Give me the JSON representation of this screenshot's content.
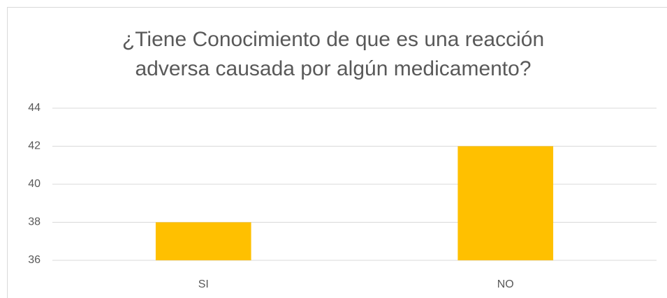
{
  "chart_data": {
    "type": "bar",
    "title": "¿Tiene Conocimiento de que es una reacción adversa causada por algún medicamento?",
    "categories": [
      "SI",
      "NO"
    ],
    "values": [
      38,
      42
    ],
    "color": "#ffc000",
    "ylim": [
      36,
      44
    ],
    "yticks": [
      36,
      38,
      40,
      42,
      44
    ],
    "grid": true
  }
}
